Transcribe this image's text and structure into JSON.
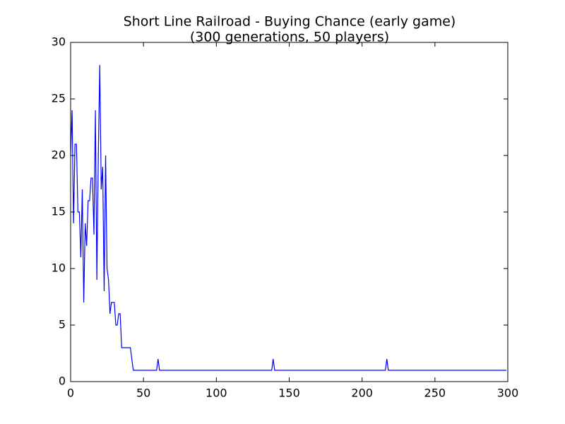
{
  "chart_data": {
    "type": "line",
    "title": "Short Line Railroad - Buying Chance (early game)",
    "subtitle": "(300 generations, 50 players)",
    "xlim": [
      0,
      300
    ],
    "xticks": [
      0,
      50,
      100,
      150,
      200,
      250,
      300
    ],
    "ylim": [
      0,
      30
    ],
    "yticks": [
      0,
      5,
      10,
      15,
      20,
      25,
      30
    ],
    "color": "#0000ff",
    "x": [
      0,
      1,
      2,
      3,
      4,
      5,
      6,
      7,
      8,
      9,
      10,
      11,
      12,
      13,
      14,
      15,
      16,
      17,
      18,
      19,
      20,
      21,
      22,
      23,
      24,
      25,
      26,
      27,
      28,
      29,
      30,
      31,
      32,
      33,
      34,
      35,
      36,
      37,
      38,
      39,
      40,
      41,
      42,
      43,
      44,
      45,
      46,
      47,
      48,
      49,
      50,
      51,
      52,
      53,
      54,
      55,
      56,
      57,
      58,
      59,
      60,
      61,
      62,
      63,
      64,
      65,
      66,
      67,
      68,
      69,
      70,
      71,
      72,
      73,
      74,
      75,
      76,
      77,
      78,
      79,
      80,
      81,
      82,
      83,
      84,
      85,
      86,
      87,
      88,
      89,
      90,
      91,
      92,
      93,
      94,
      95,
      96,
      97,
      98,
      99,
      100,
      101,
      102,
      103,
      104,
      105,
      106,
      107,
      108,
      109,
      110,
      111,
      112,
      113,
      114,
      115,
      116,
      117,
      118,
      119,
      120,
      121,
      122,
      123,
      124,
      125,
      126,
      127,
      128,
      129,
      130,
      131,
      132,
      133,
      134,
      135,
      136,
      137,
      138,
      139,
      140,
      141,
      142,
      143,
      144,
      145,
      146,
      147,
      148,
      149,
      150,
      151,
      152,
      153,
      154,
      155,
      156,
      157,
      158,
      159,
      160,
      161,
      162,
      163,
      164,
      165,
      166,
      167,
      168,
      169,
      170,
      171,
      172,
      173,
      174,
      175,
      176,
      177,
      178,
      179,
      180,
      181,
      182,
      183,
      184,
      185,
      186,
      187,
      188,
      189,
      190,
      191,
      192,
      193,
      194,
      195,
      196,
      197,
      198,
      199,
      200,
      201,
      202,
      203,
      204,
      205,
      206,
      207,
      208,
      209,
      210,
      211,
      212,
      213,
      214,
      215,
      216,
      217,
      218,
      219,
      220,
      221,
      222,
      223,
      224,
      225,
      226,
      227,
      228,
      229,
      230,
      231,
      232,
      233,
      234,
      235,
      236,
      237,
      238,
      239,
      240,
      241,
      242,
      243,
      244,
      245,
      246,
      247,
      248,
      249,
      250,
      251,
      252,
      253,
      254,
      255,
      256,
      257,
      258,
      259,
      260,
      261,
      262,
      263,
      264,
      265,
      266,
      267,
      268,
      269,
      270,
      271,
      272,
      273,
      274,
      275,
      276,
      277,
      278,
      279,
      280,
      281,
      282,
      283,
      284,
      285,
      286,
      287,
      288,
      289,
      290,
      291,
      292,
      293,
      294,
      295,
      296,
      297,
      298,
      299
    ],
    "values": [
      20,
      24,
      14,
      21,
      21,
      15,
      15,
      11,
      17,
      7,
      14,
      12,
      16,
      16,
      18,
      18,
      13,
      24,
      9,
      20,
      28,
      17,
      19,
      8,
      20,
      10,
      9,
      6,
      7,
      7,
      7,
      5,
      5,
      6,
      6,
      3,
      3,
      3,
      3,
      3,
      3,
      3,
      2,
      1,
      1,
      1,
      1,
      1,
      1,
      1,
      1,
      1,
      1,
      1,
      1,
      1,
      1,
      1,
      1,
      1,
      2,
      1,
      1,
      1,
      1,
      1,
      1,
      1,
      1,
      1,
      1,
      1,
      1,
      1,
      1,
      1,
      1,
      1,
      1,
      1,
      1,
      1,
      1,
      1,
      1,
      1,
      1,
      1,
      1,
      1,
      1,
      1,
      1,
      1,
      1,
      1,
      1,
      1,
      1,
      1,
      1,
      1,
      1,
      1,
      1,
      1,
      1,
      1,
      1,
      1,
      1,
      1,
      1,
      1,
      1,
      1,
      1,
      1,
      1,
      1,
      1,
      1,
      1,
      1,
      1,
      1,
      1,
      1,
      1,
      1,
      1,
      1,
      1,
      1,
      1,
      1,
      1,
      1,
      1,
      2,
      1,
      1,
      1,
      1,
      1,
      1,
      1,
      1,
      1,
      1,
      1,
      1,
      1,
      1,
      1,
      1,
      1,
      1,
      1,
      1,
      1,
      1,
      1,
      1,
      1,
      1,
      1,
      1,
      1,
      1,
      1,
      1,
      1,
      1,
      1,
      1,
      1,
      1,
      1,
      1,
      1,
      1,
      1,
      1,
      1,
      1,
      1,
      1,
      1,
      1,
      1,
      1,
      1,
      1,
      1,
      1,
      1,
      1,
      1,
      1,
      1,
      1,
      1,
      1,
      1,
      1,
      1,
      1,
      1,
      1,
      1,
      1,
      1,
      1,
      1,
      1,
      1,
      2,
      1,
      1,
      1,
      1,
      1,
      1,
      1,
      1,
      1,
      1,
      1,
      1,
      1,
      1,
      1,
      1,
      1,
      1,
      1,
      1,
      1,
      1,
      1,
      1,
      1,
      1,
      1,
      1,
      1,
      1,
      1,
      1,
      1,
      1,
      1,
      1,
      1,
      1,
      1,
      1,
      1,
      1,
      1,
      1,
      1,
      1,
      1,
      1,
      1,
      1,
      1,
      1,
      1,
      1,
      1,
      1,
      1,
      1,
      1,
      1,
      1,
      1,
      1,
      1,
      1,
      1,
      1,
      1,
      1,
      1,
      1,
      1,
      1,
      1,
      1,
      1,
      1,
      1,
      1,
      1,
      1,
      1
    ]
  }
}
